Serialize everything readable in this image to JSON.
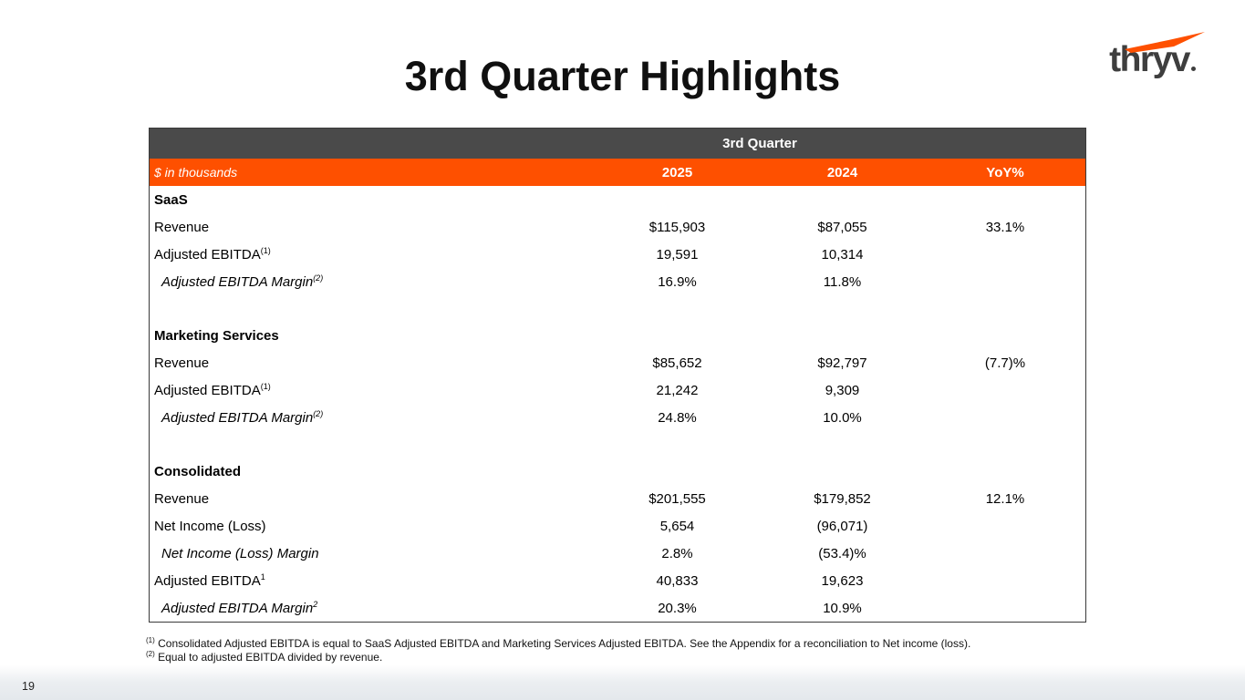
{
  "colors": {
    "accent": "#FE5000",
    "table_header_bg": "#4A4A4A",
    "title_color": "#101010"
  },
  "slide": {
    "title": "3rd Quarter Highlights",
    "page_number": "19"
  },
  "logo": {
    "text": "thryv"
  },
  "table": {
    "group_header": "3rd Quarter",
    "unit_label": "$ in thousands",
    "columns": [
      "2025",
      "2024",
      "YoY%"
    ],
    "sections": [
      {
        "name": "SaaS",
        "rows": [
          {
            "label": "Revenue",
            "sup": "",
            "italic": false,
            "values": [
              "$115,903",
              "$87,055",
              "33.1%"
            ]
          },
          {
            "label": "Adjusted EBITDA",
            "sup": "(1)",
            "italic": false,
            "values": [
              "19,591",
              "10,314",
              ""
            ]
          },
          {
            "label": "Adjusted EBITDA Margin",
            "sup": "(2)",
            "italic": true,
            "values": [
              "16.9%",
              "11.8%",
              ""
            ]
          }
        ]
      },
      {
        "name": "Marketing Services",
        "rows": [
          {
            "label": "Revenue",
            "sup": "",
            "italic": false,
            "values": [
              "$85,652",
              "$92,797",
              "(7.7)%"
            ]
          },
          {
            "label": "Adjusted EBITDA",
            "sup": "(1)",
            "italic": false,
            "values": [
              "21,242",
              "9,309",
              ""
            ]
          },
          {
            "label": "Adjusted EBITDA Margin",
            "sup": "(2)",
            "italic": true,
            "values": [
              "24.8%",
              "10.0%",
              ""
            ]
          }
        ]
      },
      {
        "name": "Consolidated",
        "rows": [
          {
            "label": "Revenue",
            "sup": "",
            "italic": false,
            "values": [
              "$201,555",
              "$179,852",
              "12.1%"
            ]
          },
          {
            "label": "Net Income (Loss)",
            "sup": "",
            "italic": false,
            "values": [
              "5,654",
              "(96,071)",
              ""
            ]
          },
          {
            "label": "Net Income (Loss) Margin",
            "sup": "",
            "italic": true,
            "values": [
              "2.8%",
              "(53.4)%",
              ""
            ]
          },
          {
            "label": "Adjusted EBITDA",
            "sup": "1",
            "italic": false,
            "values": [
              "40,833",
              "19,623",
              ""
            ]
          },
          {
            "label": "Adjusted EBITDA Margin",
            "sup": "2",
            "italic": true,
            "values": [
              "20.3%",
              "10.9%",
              ""
            ]
          }
        ]
      }
    ]
  },
  "footnotes": [
    {
      "sup": "(1)",
      "text": "Consolidated Adjusted EBITDA is equal to SaaS Adjusted EBITDA and Marketing Services Adjusted EBITDA. See the Appendix for a reconciliation to Net income (loss)."
    },
    {
      "sup": "(2)",
      "text": "Equal to adjusted EBITDA divided by revenue."
    }
  ]
}
